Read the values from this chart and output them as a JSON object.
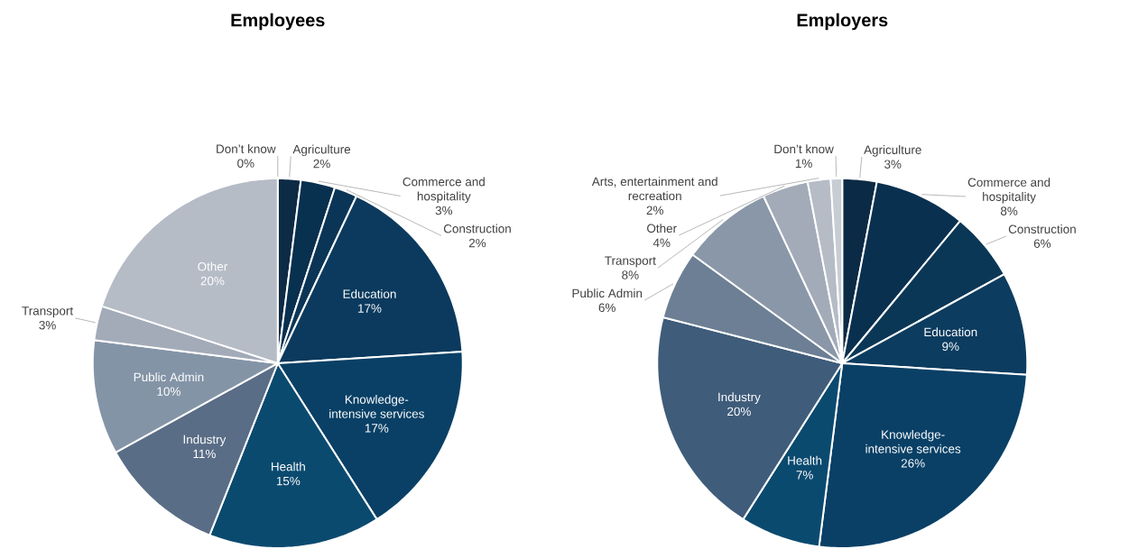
{
  "chart_data": [
    {
      "type": "pie",
      "title": "Employees",
      "categories": [
        "Agriculture",
        "Commerce and hospitality",
        "Construction",
        "Education",
        "Knowledge-intensive services",
        "Health",
        "Industry",
        "Public Admin",
        "Transport",
        "Other",
        "Don’t know"
      ],
      "values": [
        2,
        3,
        2,
        17,
        17,
        15,
        11,
        10,
        3,
        20,
        0
      ],
      "value_labels": [
        "2%",
        "3%",
        "2%",
        "17%",
        "17%",
        "15%",
        "11%",
        "10%",
        "3%",
        "20%",
        "0%"
      ],
      "colors": [
        "#0d2b45",
        "#08304f",
        "#0a3556",
        "#0b3a5e",
        "#0a4066",
        "#0b4a6f",
        "#5a6d86",
        "#8494a7",
        "#a3abb8",
        "#b5bcc6",
        "#c8cdd4"
      ]
    },
    {
      "type": "pie",
      "title": "Employers",
      "categories": [
        "Agriculture",
        "Commerce and hospitality",
        "Construction",
        "Education",
        "Knowledge-intensive services",
        "Health",
        "Industry",
        "Public Admin",
        "Transport",
        "Other",
        "Arts, entertainment and recreation",
        "Don’t know"
      ],
      "values": [
        3,
        8,
        6,
        9,
        26,
        7,
        20,
        6,
        8,
        4,
        2,
        1
      ],
      "value_labels": [
        "3%",
        "8%",
        "6%",
        "9%",
        "26%",
        "7%",
        "20%",
        "6%",
        "8%",
        "4%",
        "2%",
        "1%"
      ],
      "colors": [
        "#0b2a45",
        "#0a3050",
        "#0b3756",
        "#0c3c5f",
        "#0a4066",
        "#0b4a6f",
        "#3f5c7a",
        "#6c7f94",
        "#8a97a8",
        "#a3abb8",
        "#b5bcc6",
        "#c8cdd4"
      ]
    }
  ]
}
